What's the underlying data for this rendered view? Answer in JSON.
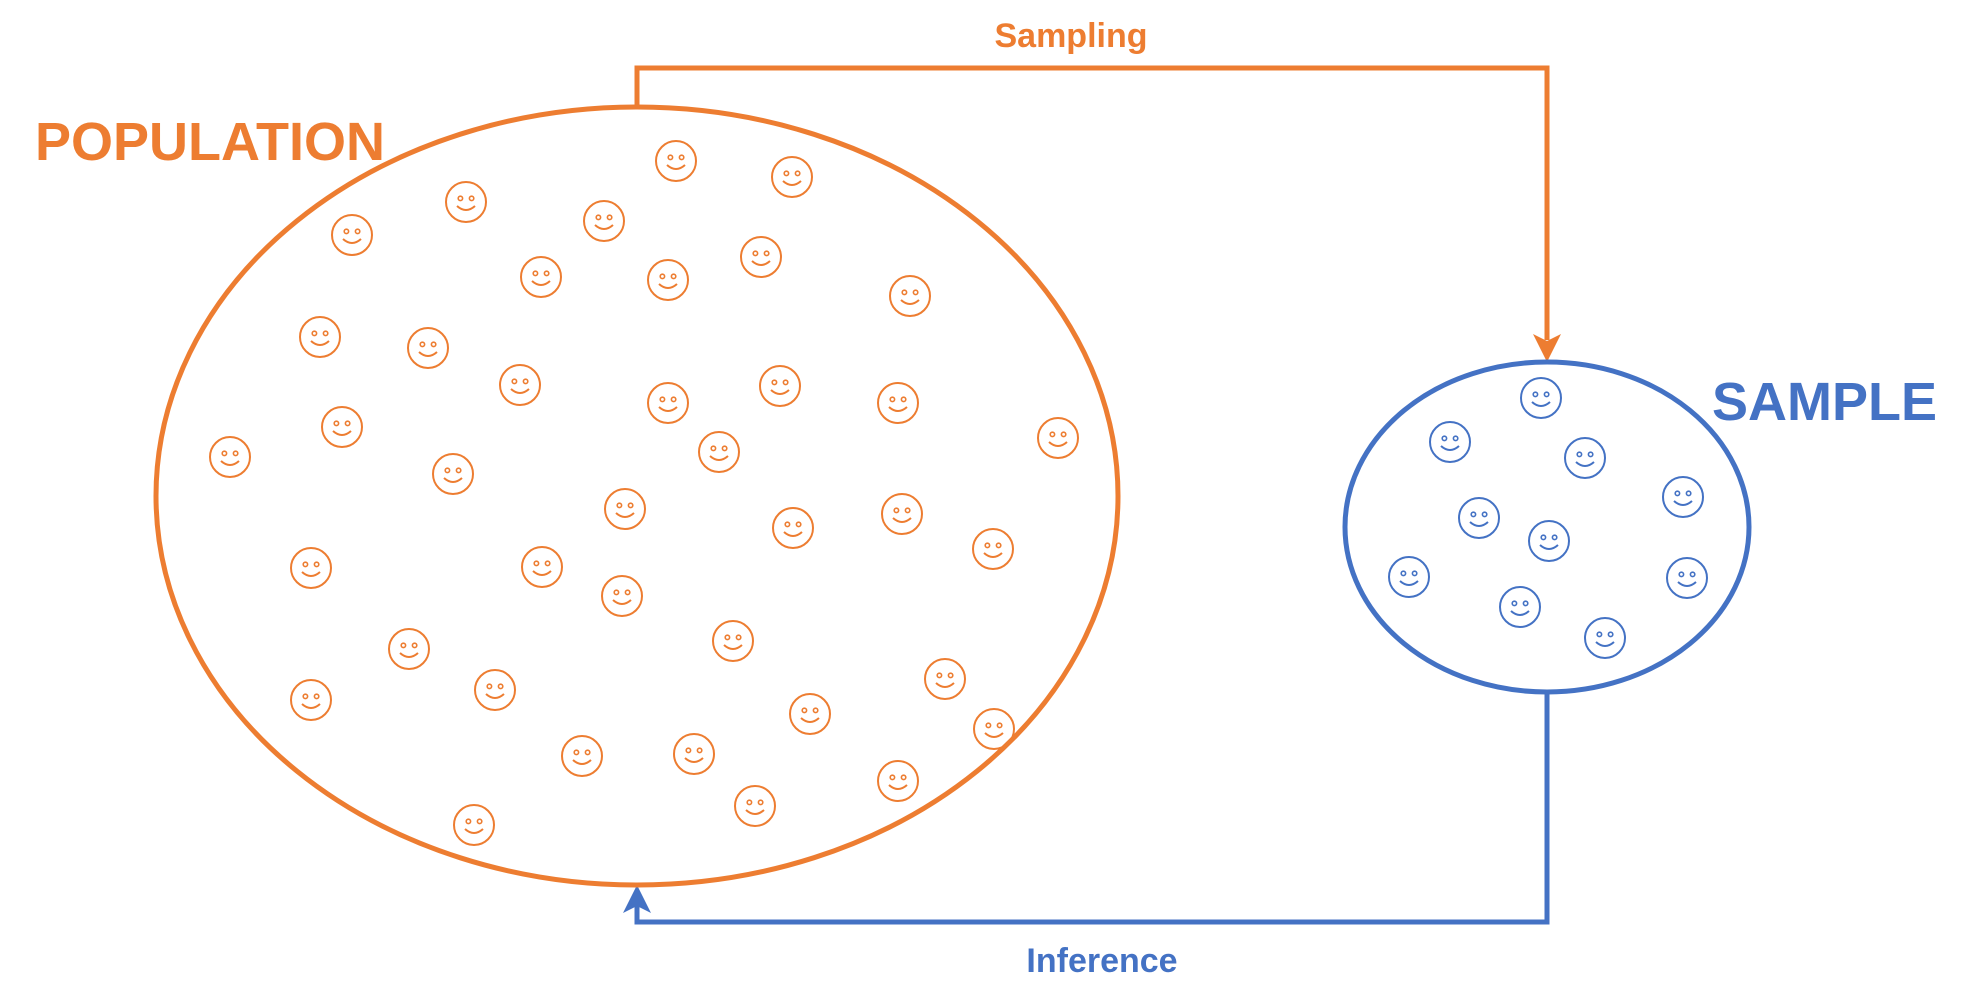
{
  "labels": {
    "population": "POPULATION",
    "sample": "SAMPLE",
    "sampling": "Sampling",
    "inference": "Inference"
  },
  "colors": {
    "population": "#ED7D31",
    "sample": "#4472C4",
    "background": "#FFFFFF"
  },
  "population_face_icon": "smiley-face-icon",
  "sample_face_icon": "smiley-face-icon"
}
